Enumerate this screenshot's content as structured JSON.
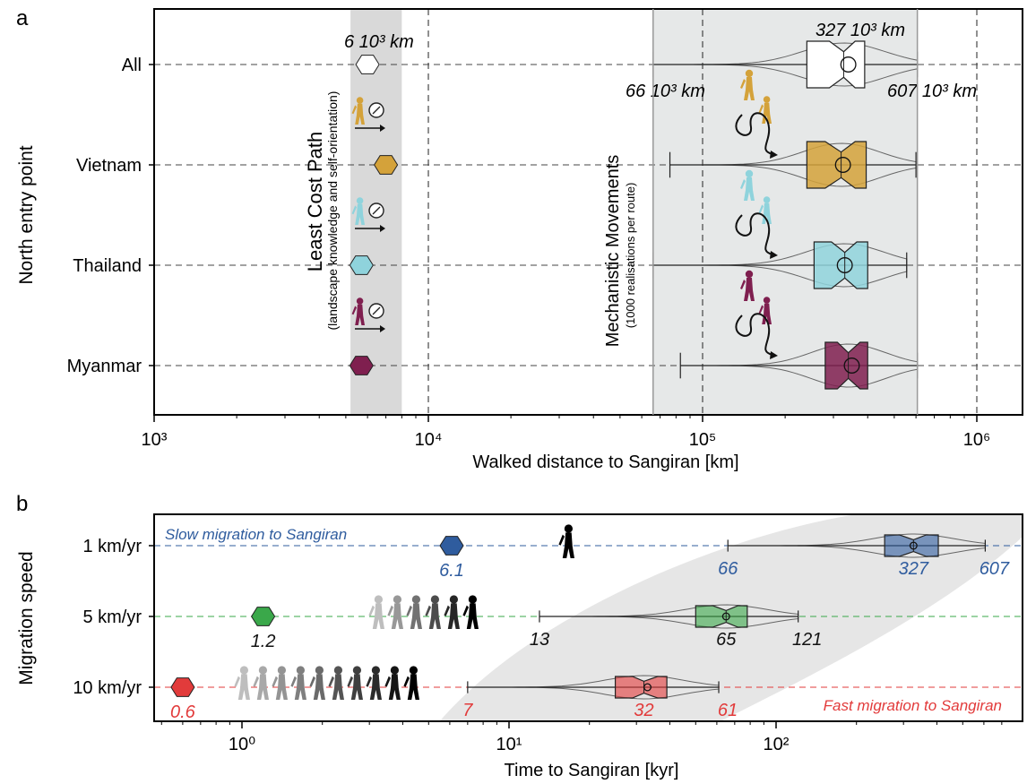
{
  "panel_labels": [
    "a",
    "b"
  ],
  "colors": {
    "all": "#ffffff",
    "vietnam": "#d4a23a",
    "thailand": "#8fd3dc",
    "myanmar": "#7f1f4f",
    "slow": "#2f5c9e",
    "medium": "#3aa84a",
    "fast": "#e23b3b",
    "band": "#e6e8e8"
  },
  "chart_data": [
    {
      "type": "box",
      "panel": "a",
      "xlabel": "Walked distance to Sangiran [km]",
      "ylabel": "North entry point",
      "xscale": "log",
      "xlim": [
        1000,
        1500000
      ],
      "xticks": [
        1000,
        10000,
        100000,
        1000000
      ],
      "xtick_labels": [
        "10³",
        "10⁴",
        "10⁵",
        "10⁶"
      ],
      "grid": "dashed",
      "categories": [
        "All",
        "Vietnam",
        "Thailand",
        "Myanmar"
      ],
      "least_cost_band": [
        5200,
        8000
      ],
      "least_cost_label": "Least Cost Path",
      "least_cost_sublabel": "(landscape knowledge and self-orientation)",
      "mechanistic_band": [
        66000,
        607000
      ],
      "mechanistic_label": "Mechanistic Movements",
      "mechanistic_sublabel": "(1000 realisations per route)",
      "least_cost_distance": [
        {
          "name": "All",
          "value": 6000
        },
        {
          "name": "Vietnam",
          "value": 7000
        },
        {
          "name": "Thailand",
          "value": 5700
        },
        {
          "name": "Myanmar",
          "value": 5700
        }
      ],
      "boxes": [
        {
          "name": "All",
          "min": 66000,
          "q1": 240000,
          "median": 327000,
          "mean": 340000,
          "q3": 390000,
          "max": 607000,
          "notch_low": 290000,
          "notch_high": 360000
        },
        {
          "name": "Vietnam",
          "min": 76000,
          "q1": 240000,
          "median": 320000,
          "mean": 325000,
          "q3": 395000,
          "max": 600000,
          "notch_low": 280000,
          "notch_high": 360000
        },
        {
          "name": "Thailand",
          "min": 66000,
          "q1": 255000,
          "median": 330000,
          "mean": 330000,
          "q3": 400000,
          "max": 555000,
          "notch_low": 295000,
          "notch_high": 365000
        },
        {
          "name": "Myanmar",
          "min": 83000,
          "q1": 280000,
          "median": 340000,
          "mean": 350000,
          "q3": 400000,
          "max": 607000,
          "notch_low": 310000,
          "notch_high": 375000
        }
      ],
      "annotations": [
        "6 10³ km",
        "327 10³ km",
        "66 10³ km",
        "607 10³ km"
      ]
    },
    {
      "type": "box",
      "panel": "b",
      "xlabel": "Time to Sangiran [kyr]",
      "ylabel": "Migration speed",
      "xscale": "log",
      "xlim": [
        0.45,
        800
      ],
      "xticks": [
        1,
        10,
        100
      ],
      "xtick_labels": [
        "10⁰",
        "10¹",
        "10²"
      ],
      "categories": [
        "1 km/yr",
        "5 km/yr",
        "10 km/yr"
      ],
      "least_cost_time": [
        {
          "name": "1 km/yr",
          "value": 6.1,
          "label": "6.1"
        },
        {
          "name": "5 km/yr",
          "value": 1.2,
          "label": "1.2"
        },
        {
          "name": "10 km/yr",
          "value": 0.6,
          "label": "0.6"
        }
      ],
      "boxes": [
        {
          "name": "1 km/yr",
          "min": 66,
          "q1": 255,
          "median": 327,
          "mean": 327,
          "q3": 405,
          "max": 607,
          "notch_low": 290,
          "notch_high": 365,
          "min_label": "66",
          "median_label": "327",
          "max_label": "607"
        },
        {
          "name": "5 km/yr",
          "min": 13,
          "q1": 50,
          "median": 65,
          "mean": 65,
          "q3": 78,
          "max": 121,
          "notch_low": 58,
          "notch_high": 72,
          "min_label": "13",
          "median_label": "65",
          "max_label": "121"
        },
        {
          "name": "10 km/yr",
          "min": 7,
          "q1": 25,
          "median": 32,
          "mean": 33,
          "q3": 39,
          "max": 61,
          "notch_low": 29,
          "notch_high": 36,
          "min_label": "7",
          "median_label": "32",
          "max_label": "61"
        }
      ],
      "walker_counts": [
        1,
        6,
        10
      ],
      "annotations": [
        "Slow migration to Sangiran",
        "Fast migration to Sangiran"
      ]
    }
  ]
}
